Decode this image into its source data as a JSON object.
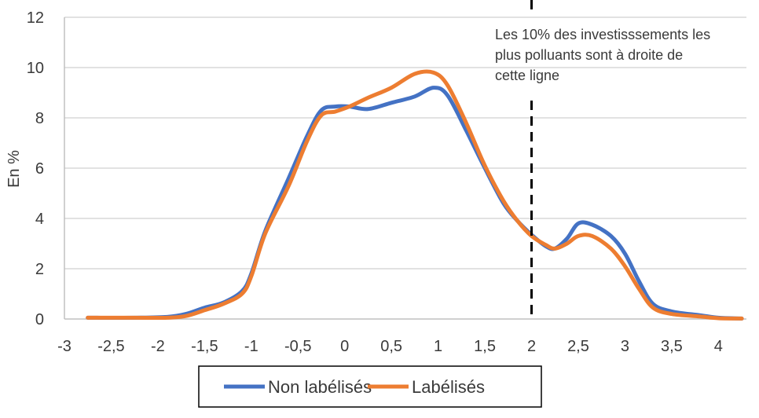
{
  "chart_data": {
    "type": "line",
    "ylabel": "En %",
    "xlim": [
      -3,
      4.3
    ],
    "ylim": [
      0,
      12
    ],
    "x_ticks": [
      "-3",
      "-2,5",
      "-2",
      "-1,5",
      "-1",
      "-0,5",
      "0",
      "0,5",
      "1",
      "1,5",
      "2",
      "2,5",
      "3",
      "3,5",
      "4"
    ],
    "y_ticks": [
      "0",
      "2",
      "4",
      "6",
      "8",
      "10",
      "12"
    ],
    "grid": "horizontal",
    "legend_position": "bottom",
    "reference_line": {
      "x": 2,
      "style": "dashed"
    },
    "annotation": {
      "lines": [
        "Les 10% des investisssements les",
        "plus polluants sont à droite de",
        "cette ligne"
      ]
    },
    "series": [
      {
        "name": "Non labélisés",
        "color": "#4472C4",
        "points": [
          [
            -2.75,
            0.05
          ],
          [
            -2.25,
            0.05
          ],
          [
            -1.9,
            0.08
          ],
          [
            -1.7,
            0.2
          ],
          [
            -1.5,
            0.45
          ],
          [
            -1.3,
            0.65
          ],
          [
            -1.1,
            1.1
          ],
          [
            -1.0,
            1.8
          ],
          [
            -0.85,
            3.5
          ],
          [
            -0.6,
            5.6
          ],
          [
            -0.4,
            7.3
          ],
          [
            -0.25,
            8.3
          ],
          [
            -0.1,
            8.45
          ],
          [
            0.05,
            8.45
          ],
          [
            0.25,
            8.35
          ],
          [
            0.5,
            8.6
          ],
          [
            0.75,
            8.85
          ],
          [
            0.95,
            9.2
          ],
          [
            1.1,
            8.9
          ],
          [
            1.3,
            7.5
          ],
          [
            1.5,
            6.0
          ],
          [
            1.7,
            4.6
          ],
          [
            1.85,
            3.9
          ],
          [
            2.0,
            3.35
          ],
          [
            2.15,
            2.9
          ],
          [
            2.25,
            2.8
          ],
          [
            2.38,
            3.2
          ],
          [
            2.5,
            3.8
          ],
          [
            2.65,
            3.75
          ],
          [
            2.85,
            3.3
          ],
          [
            3.0,
            2.6
          ],
          [
            3.15,
            1.5
          ],
          [
            3.3,
            0.6
          ],
          [
            3.5,
            0.3
          ],
          [
            3.8,
            0.15
          ],
          [
            4.0,
            0.05
          ],
          [
            4.25,
            0.02
          ]
        ]
      },
      {
        "name": "Labélisés",
        "color": "#ED7D31",
        "points": [
          [
            -2.75,
            0.05
          ],
          [
            -2.25,
            0.05
          ],
          [
            -1.9,
            0.05
          ],
          [
            -1.7,
            0.12
          ],
          [
            -1.5,
            0.35
          ],
          [
            -1.3,
            0.6
          ],
          [
            -1.1,
            1.0
          ],
          [
            -1.0,
            1.7
          ],
          [
            -0.85,
            3.4
          ],
          [
            -0.6,
            5.3
          ],
          [
            -0.4,
            7.1
          ],
          [
            -0.25,
            8.1
          ],
          [
            -0.1,
            8.25
          ],
          [
            0.05,
            8.45
          ],
          [
            0.25,
            8.8
          ],
          [
            0.5,
            9.2
          ],
          [
            0.75,
            9.75
          ],
          [
            0.95,
            9.8
          ],
          [
            1.1,
            9.3
          ],
          [
            1.3,
            7.8
          ],
          [
            1.5,
            6.1
          ],
          [
            1.7,
            4.7
          ],
          [
            1.85,
            3.9
          ],
          [
            2.0,
            3.3
          ],
          [
            2.15,
            2.95
          ],
          [
            2.25,
            2.8
          ],
          [
            2.38,
            3.0
          ],
          [
            2.5,
            3.3
          ],
          [
            2.65,
            3.3
          ],
          [
            2.85,
            2.8
          ],
          [
            3.0,
            2.1
          ],
          [
            3.15,
            1.2
          ],
          [
            3.3,
            0.45
          ],
          [
            3.5,
            0.2
          ],
          [
            3.8,
            0.1
          ],
          [
            4.0,
            0.03
          ],
          [
            4.25,
            0.02
          ]
        ]
      }
    ]
  }
}
